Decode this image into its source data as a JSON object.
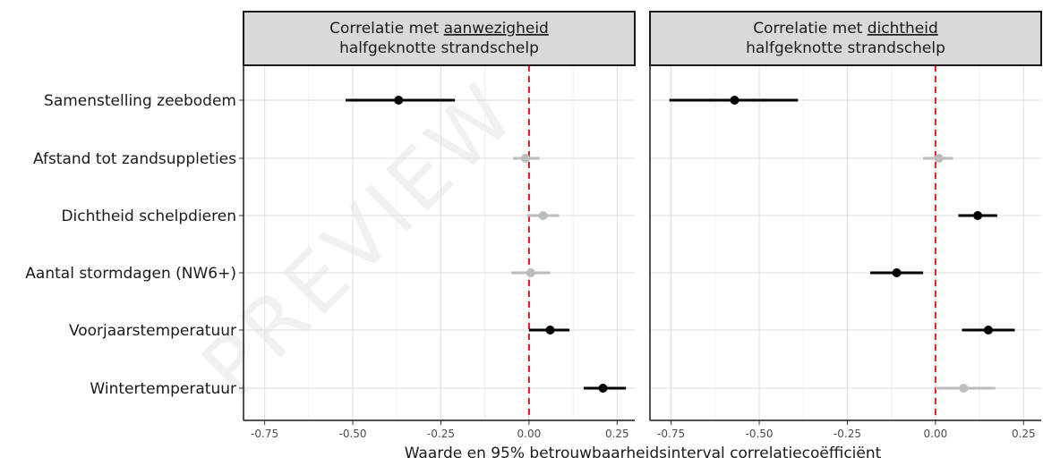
{
  "chart_data": {
    "type": "scatter",
    "subtype": "forest-plot-with-error-bars",
    "x_axis_title": "Waarde en 95% betrouwbaarheidsinterval correlatiecoëfficiënt",
    "categories": [
      "Samenstelling zeebodem",
      "Afstand tot zandsuppleties",
      "Dichtheid schelpdieren",
      "Aantal stormdagen (NW6+)",
      "Voorjaarstemperatuur",
      "Wintertemperatuur"
    ],
    "reference_line": {
      "x": 0,
      "color": "#e41a1c",
      "style": "dashed"
    },
    "colors": {
      "significant": "#000000",
      "not_significant": "#bdbdbd"
    },
    "grid": true,
    "watermark": "PREVIEW",
    "panels": [
      {
        "title_line1_prefix": "Correlatie met ",
        "title_line1_underlined": "aanwezigheid",
        "title_line2": "halfgeknotte strandschelp",
        "xlim": [
          -0.81,
          0.3
        ],
        "xticks": [
          -0.75,
          -0.5,
          -0.25,
          0.0,
          0.25
        ],
        "xtick_labels": [
          "-0.75",
          "-0.50",
          "-0.25",
          "0.00",
          "0.25"
        ],
        "points": [
          {
            "category": "Samenstelling zeebodem",
            "estimate": -0.37,
            "lower": -0.52,
            "upper": -0.21,
            "significant": true
          },
          {
            "category": "Afstand tot zandsuppleties",
            "estimate": -0.01,
            "lower": -0.045,
            "upper": 0.03,
            "significant": false
          },
          {
            "category": "Dichtheid schelpdieren",
            "estimate": 0.04,
            "lower": -0.005,
            "upper": 0.085,
            "significant": false
          },
          {
            "category": "Aantal stormdagen (NW6+)",
            "estimate": 0.005,
            "lower": -0.05,
            "upper": 0.06,
            "significant": false
          },
          {
            "category": "Voorjaarstemperatuur",
            "estimate": 0.06,
            "lower": 0.0,
            "upper": 0.115,
            "significant": true
          },
          {
            "category": "Wintertemperatuur",
            "estimate": 0.21,
            "lower": 0.155,
            "upper": 0.275,
            "significant": true
          }
        ]
      },
      {
        "title_line1_prefix": "Correlatie met ",
        "title_line1_underlined": "dichtheid",
        "title_line2": "halfgeknotte strandschelp",
        "xlim": [
          -0.81,
          0.3
        ],
        "xticks": [
          -0.75,
          -0.5,
          -0.25,
          0.0,
          0.25
        ],
        "xtick_labels": [
          "-0.75",
          "-0.50",
          "-0.25",
          "0.00",
          "0.25"
        ],
        "points": [
          {
            "category": "Samenstelling zeebodem",
            "estimate": -0.57,
            "lower": -0.755,
            "upper": -0.39,
            "significant": true
          },
          {
            "category": "Afstand tot zandsuppleties",
            "estimate": 0.01,
            "lower": -0.035,
            "upper": 0.05,
            "significant": false
          },
          {
            "category": "Dichtheid schelpdieren",
            "estimate": 0.12,
            "lower": 0.065,
            "upper": 0.175,
            "significant": true
          },
          {
            "category": "Aantal stormdagen (NW6+)",
            "estimate": -0.11,
            "lower": -0.185,
            "upper": -0.035,
            "significant": true
          },
          {
            "category": "Voorjaarstemperatuur",
            "estimate": 0.15,
            "lower": 0.075,
            "upper": 0.225,
            "significant": true
          },
          {
            "category": "Wintertemperatuur",
            "estimate": 0.08,
            "lower": 0.0,
            "upper": 0.17,
            "significant": false
          }
        ]
      }
    ]
  }
}
